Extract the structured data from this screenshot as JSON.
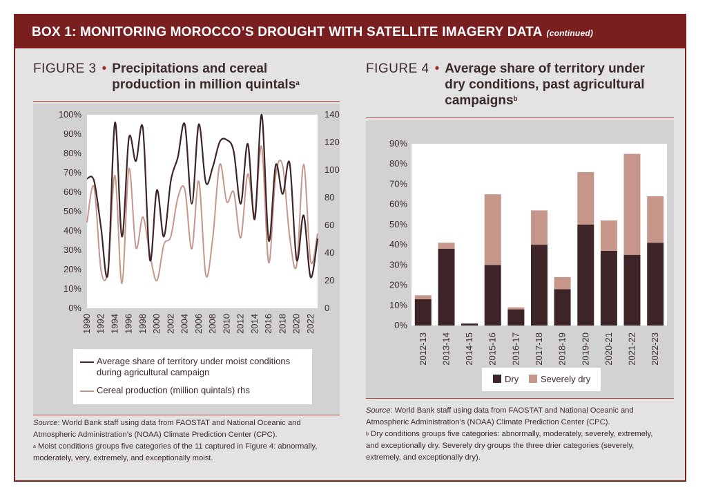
{
  "box": {
    "title": "BOX 1: MONITORING MOROCCO’S DROUGHT WITH SATELLITE IMAGERY DATA",
    "continued": "(continued)",
    "header_color": "#7a1f1f"
  },
  "figure3": {
    "label": "FIGURE 3",
    "title_line1": "Precipitations and cereal",
    "title_line2": "production in million quintals",
    "title_sup": "a",
    "source_label": "Source",
    "source_text": ": World Bank staff using data from FAOSTAT and National Oceanic and",
    "source_line2": "Atmospheric Administration’s (NOAA) Climate Prediction Center (CPC).",
    "note_sup": "a",
    "note_line1": " Moist conditions groups five categories of the 11 captured in Figure 4: abnormally,",
    "note_line2": "moderately, very, extremely, and exceptionally moist.",
    "legend": {
      "moist": "Average share of territory under moist conditions",
      "moist_line2": "during agricultural campaign",
      "cereal": "Cereal production (million quintals) rhs"
    }
  },
  "figure4": {
    "label": "FIGURE 4",
    "title_line1": "Average share of territory under",
    "title_line2": "dry conditions, past agricultural",
    "title_line3": "campaigns",
    "title_sup": "b",
    "source_label": "Source",
    "source_text": ": World Bank staff using data from FAOSTAT and National Oceanic and",
    "source_line2": "Atmospheric Administration’s (NOAA) Climate Prediction Center (CPC).",
    "note_sup": "b",
    "note_line1": " Dry conditions groups five categories: abnormally, moderately, severely, extremely,",
    "note_line2": "and exceptionally dry. Severely dry groups the three drier categories (severely,",
    "note_line3": "extremely, and exceptionally dry).",
    "legend": {
      "dry": "Dry",
      "severely_dry": "Severely dry"
    }
  },
  "chart_data": [
    {
      "type": "line",
      "title": "Precipitations and cereal production in million quintals",
      "x_ticks": [
        "1990",
        "1992",
        "1994",
        "1996",
        "1998",
        "2000",
        "2002",
        "2004",
        "2006",
        "2008",
        "2010",
        "2012",
        "2014",
        "2016",
        "2018",
        "2020",
        "2022"
      ],
      "y_left_ticks": [
        "0%",
        "10%",
        "20%",
        "30%",
        "40%",
        "50%",
        "60%",
        "70%",
        "80%",
        "90%",
        "100%"
      ],
      "y_right_ticks": [
        "0",
        "20",
        "40",
        "60",
        "80",
        "100",
        "120",
        "140"
      ],
      "ylim_left": [
        0,
        100
      ],
      "ylim_right": [
        0,
        140
      ],
      "series": [
        {
          "name": "Average share of territory under moist conditions during agricultural campaign",
          "axis": "left",
          "color": "#3d2426",
          "x": [
            1990,
            1991,
            1992,
            1993,
            1994,
            1995,
            1996,
            1997,
            1998,
            1999,
            2000,
            2001,
            2002,
            2003,
            2004,
            2005,
            2006,
            2007,
            2008,
            2009,
            2010,
            2011,
            2012,
            2013,
            2014,
            2015,
            2016,
            2017,
            2018,
            2019,
            2020,
            2021,
            2022,
            2023
          ],
          "values": [
            67,
            66,
            42,
            18,
            96,
            37,
            88,
            76,
            93,
            25,
            61,
            37,
            66,
            78,
            95,
            54,
            95,
            65,
            73,
            86,
            87,
            81,
            54,
            85,
            46,
            100,
            35,
            74,
            59,
            75,
            25,
            48,
            16,
            36
          ]
        },
        {
          "name": "Cereal production (million quintals) rhs",
          "axis": "right",
          "color": "#c7968b",
          "x": [
            1990,
            1991,
            1992,
            1993,
            1994,
            1995,
            1996,
            1997,
            1998,
            1999,
            2000,
            2001,
            2002,
            2003,
            2004,
            2005,
            2006,
            2007,
            2008,
            2009,
            2010,
            2011,
            2012,
            2013,
            2014,
            2015,
            2016,
            2017,
            2018,
            2019,
            2020,
            2021,
            2022,
            2023
          ],
          "values": [
            62,
            88,
            28,
            28,
            96,
            18,
            101,
            44,
            66,
            39,
            20,
            46,
            52,
            80,
            86,
            43,
            92,
            24,
            51,
            104,
            77,
            84,
            51,
            97,
            68,
            117,
            33,
            96,
            103,
            52,
            31,
            104,
            34,
            54
          ]
        }
      ]
    },
    {
      "type": "bar",
      "stacked": true,
      "title": "Average share of territory under dry conditions, past agricultural campaigns",
      "categories": [
        "2012-13",
        "2013-14",
        "2014-15",
        "2015-16",
        "2016-17",
        "2017-18",
        "2018-19",
        "2019-20",
        "2020-21",
        "2021-22",
        "2022-23"
      ],
      "y_ticks": [
        "0%",
        "10%",
        "20%",
        "30%",
        "40%",
        "50%",
        "60%",
        "70%",
        "80%",
        "90%"
      ],
      "ylim": [
        0,
        90
      ],
      "series": [
        {
          "name": "Dry",
          "color": "#3d2426",
          "values": [
            13,
            38,
            1,
            30,
            8,
            40,
            18,
            50,
            37,
            35,
            41
          ]
        },
        {
          "name": "Severely dry",
          "color": "#c7968b",
          "values": [
            2,
            3,
            0,
            35,
            1,
            17,
            6,
            26,
            15,
            50,
            23
          ]
        }
      ]
    }
  ]
}
